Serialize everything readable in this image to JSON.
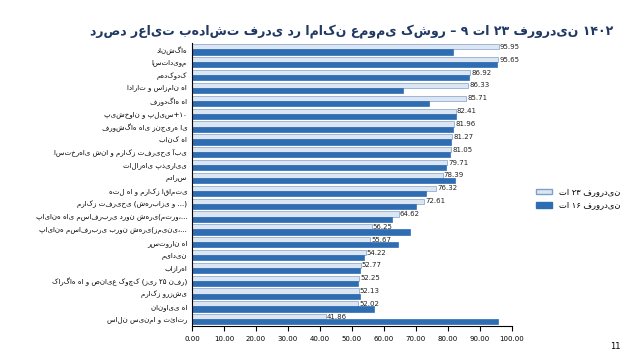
{
  "chart_data": {
    "type": "bar",
    "orientation": "horizontal",
    "title": "درصد رعایت بهداشت فردی در اماکن عمومی کشور – ۹ تا ۲۳ فروردین ۱۴۰۲",
    "annotations": [
      "11"
    ],
    "categories": [
      "دانشگاه",
      "استادیوم",
      "مهدکودک",
      "ادارات و سازمان ها",
      "فرودگاه ها",
      "پیشخوان و پلیس+۱۰",
      "فروشگاه های زنجیره ای",
      "بانک ها",
      "استخرهای شنا و مراکز تفریحی آبی",
      "تالارهای پذیرایی",
      "مدارس",
      "هتل ها و مراکز اقامتی",
      "مراکز تفریحی (شهربازی و ...)",
      "پایانه های مسافربری درون شهری(مترو،...",
      "پایانه مسافربری برون شهری(زمینی،...",
      "رستوران ها",
      "میادین",
      "بازارها",
      "کارگاه ها و صنایع کوچک (زیر ۲۵ نفر)",
      "مراکز ورزشی",
      "نانوایی ها",
      "سالن سینما و تئاتر"
    ],
    "series": [
      {
        "name": "تا ۲۳ فروردین",
        "color": "#dce6f2",
        "data_labels": true,
        "values": [
          95.95,
          95.65,
          86.92,
          86.33,
          85.71,
          82.41,
          81.96,
          81.27,
          81.05,
          79.71,
          78.39,
          76.32,
          72.61,
          64.62,
          56.25,
          55.67,
          54.22,
          52.77,
          52.25,
          52.13,
          52.02,
          41.86
        ]
      },
      {
        "name": "تا ۱۶ فروردین",
        "color": "#2f6db3",
        "data_labels": false,
        "values": [
          81.5,
          95.3,
          86.6,
          65.8,
          74.0,
          82.4,
          81.5,
          81.0,
          80.5,
          79.5,
          82.3,
          73.0,
          70.0,
          62.5,
          68.0,
          64.5,
          53.8,
          52.6,
          51.8,
          52.5,
          56.8,
          95.5
        ]
      }
    ],
    "xlim": [
      0,
      100
    ],
    "xticks": [
      {
        "value": 0,
        "label": "0.00"
      },
      {
        "value": 10,
        "label": "10.00"
      },
      {
        "value": 20,
        "label": "20.00"
      },
      {
        "value": 30,
        "label": "30.00"
      },
      {
        "value": 40,
        "label": "40.00"
      },
      {
        "value": 50,
        "label": "50.00"
      },
      {
        "value": 60,
        "label": "60.00"
      },
      {
        "value": 70,
        "label": "70.00"
      },
      {
        "value": 80,
        "label": "80.00"
      },
      {
        "value": 90,
        "label": "90.00"
      },
      {
        "value": 100,
        "label": "100.00"
      }
    ],
    "grid": false,
    "legend": "right"
  }
}
